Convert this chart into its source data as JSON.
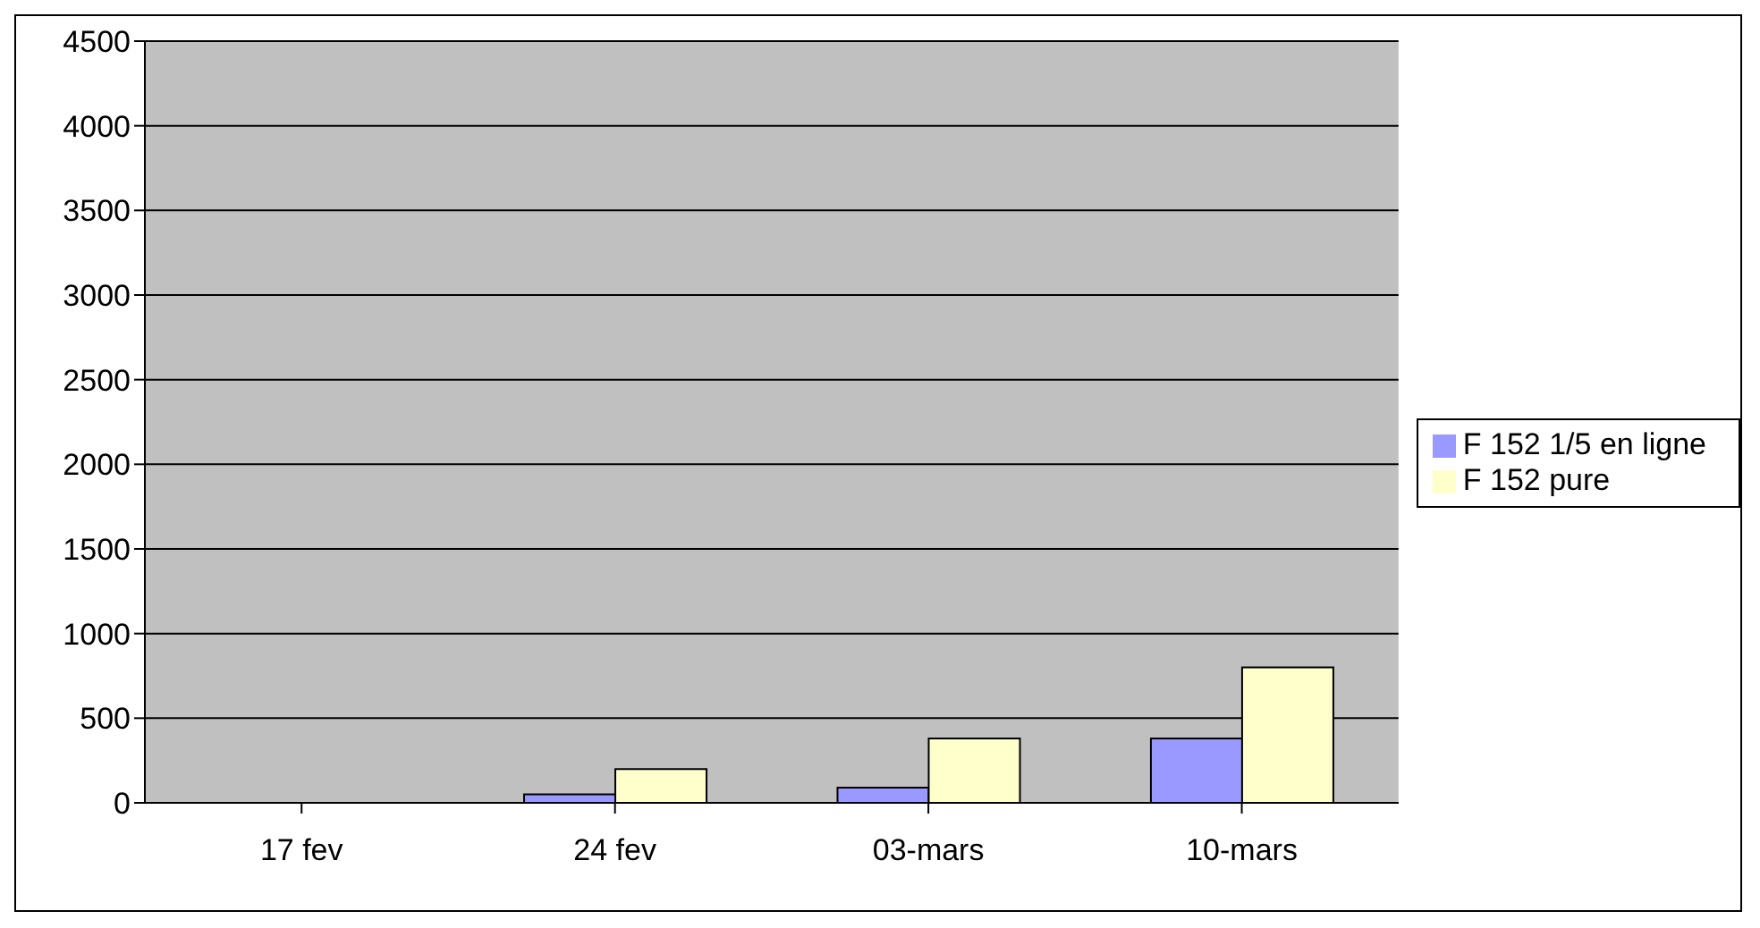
{
  "chart_data": {
    "type": "bar",
    "categories": [
      "17 fev",
      "24 fev",
      "03-mars",
      "10-mars"
    ],
    "series": [
      {
        "name": "F 152 1/5 en ligne",
        "color": "#9999ff",
        "values": [
          0,
          50,
          90,
          380
        ]
      },
      {
        "name": "F 152 pure",
        "color": "#ffffcc",
        "values": [
          0,
          200,
          380,
          800
        ]
      }
    ],
    "ylim": [
      0,
      4500
    ],
    "yticks": [
      0,
      500,
      1000,
      1500,
      2000,
      2500,
      3000,
      3500,
      4000,
      4500
    ],
    "grid": "y",
    "legend": "right"
  }
}
